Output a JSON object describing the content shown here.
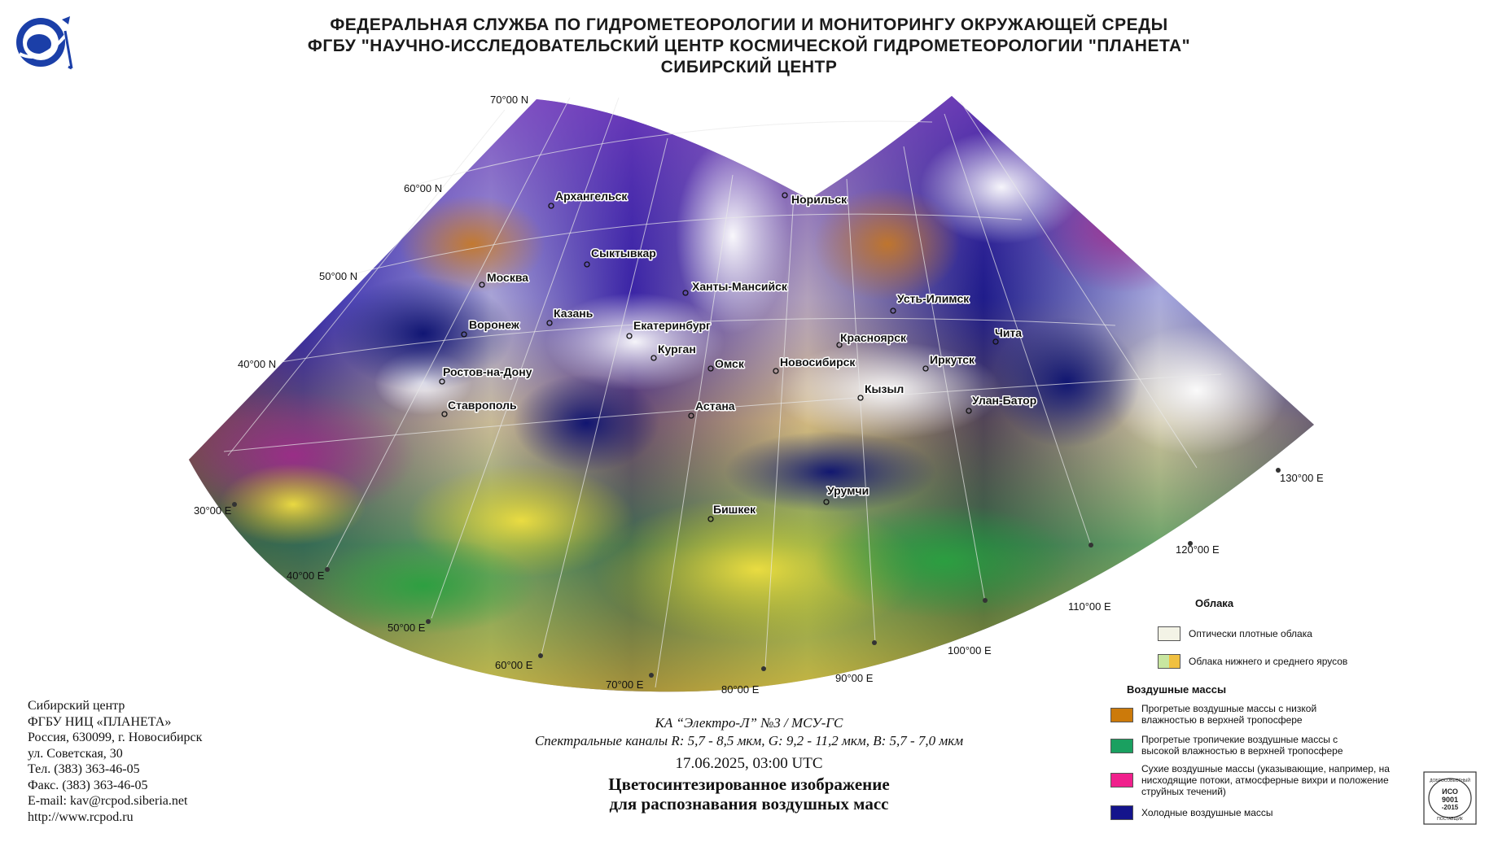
{
  "header": {
    "line1": "ФЕДЕРАЛЬНАЯ СЛУЖБА ПО ГИДРОМЕТЕОРОЛОГИИ И МОНИТОРИНГУ ОКРУЖАЮЩЕЙ СРЕДЫ",
    "line2": "ФГБУ \"НАУЧНО-ИССЛЕДОВАТЕЛЬСКИЙ ЦЕНТР КОСМИЧЕСКОЙ ГИДРОМЕТЕОРОЛОГИИ \"ПЛАНЕТА\"",
    "line3": "СИБИРСКИЙ ЦЕНТР"
  },
  "logo_icon": "planeta-satellite-logo",
  "map": {
    "lat_labels": [
      "70°00 N",
      "60°00 N",
      "50°00 N",
      "40°00 N"
    ],
    "lon_labels": [
      "30°00 E",
      "40°00 E",
      "50°00 E",
      "60°00 E",
      "70°00 E",
      "80°00 E",
      "90°00 E",
      "100°00 E",
      "110°00 E",
      "120°00 E",
      "130°00 E"
    ],
    "cities": [
      "Архангельск",
      "Норильск",
      "Сыктывкар",
      "Москва",
      "Ханты-Мансийск",
      "Усть-Илимск",
      "Казань",
      "Воронеж",
      "Екатеринбург",
      "Красноярск",
      "Чита",
      "Курган",
      "Иркутск",
      "Омск",
      "Новосибирск",
      "Ростов-на-Дону",
      "Кызыл",
      "Улан-Батор",
      "Астана",
      "Ставрополь",
      "Урумчи",
      "Бишкек"
    ]
  },
  "address": {
    "line1": "Сибирский центр",
    "line2": "ФГБУ НИЦ «ПЛАНЕТА»",
    "line3": "Россия, 630099, г. Новосибирск",
    "line4": "ул. Советская, 30",
    "line5": "Тел. (383) 363-46-05",
    "line6": "Факс. (383) 363-46-05",
    "line7": "E-mail: kav@rcpod.siberia.net",
    "line8": "http://www.rcpod.ru"
  },
  "caption": {
    "satellite": "КА “Электро-Л” №3 / МСУ-ГС",
    "channels": "Спектральные каналы R: 5,7 - 8,5 мкм, G: 9,2 - 11,2 мкм, B: 5,7 - 7,0 мкм",
    "datetime": "17.06.2025, 03:00 UTC",
    "title1": "Цветосинтезированное изображение",
    "title2": "для распознавания воздушных масс"
  },
  "legend": {
    "clouds_title": "Облака",
    "clouds": [
      {
        "label": "Оптически плотные облака",
        "colors": [
          "#f3f3e6"
        ]
      },
      {
        "label": "Облака нижнего и среднего ярусов",
        "colors": [
          "#c8e6a0",
          "#f0c040"
        ]
      }
    ],
    "air_title": "Воздушные массы",
    "air": [
      {
        "label": "Прогретые воздушные массы с низкой влажностью в верхней тропосфере",
        "color": "#cc7a0a"
      },
      {
        "label": "Прогретые тропичекие воздушные массы с высокой влажностью в верхней тропосфере",
        "color": "#1aa060"
      },
      {
        "label": "Сухие воздушные массы (указывающие, например, на нисходящие потоки, атмосферные вихри и положение струйных течений)",
        "color": "#f0208c"
      },
      {
        "label": "Холодные воздушные массы",
        "color": "#14148c"
      }
    ]
  },
  "iso_badge": {
    "top": "ДОБРОСОВЕСТНЫЙ",
    "mid1": "ИСО",
    "mid2": "9001",
    "mid3": "-2015",
    "bottom": "ПОСТАВЩИК"
  }
}
